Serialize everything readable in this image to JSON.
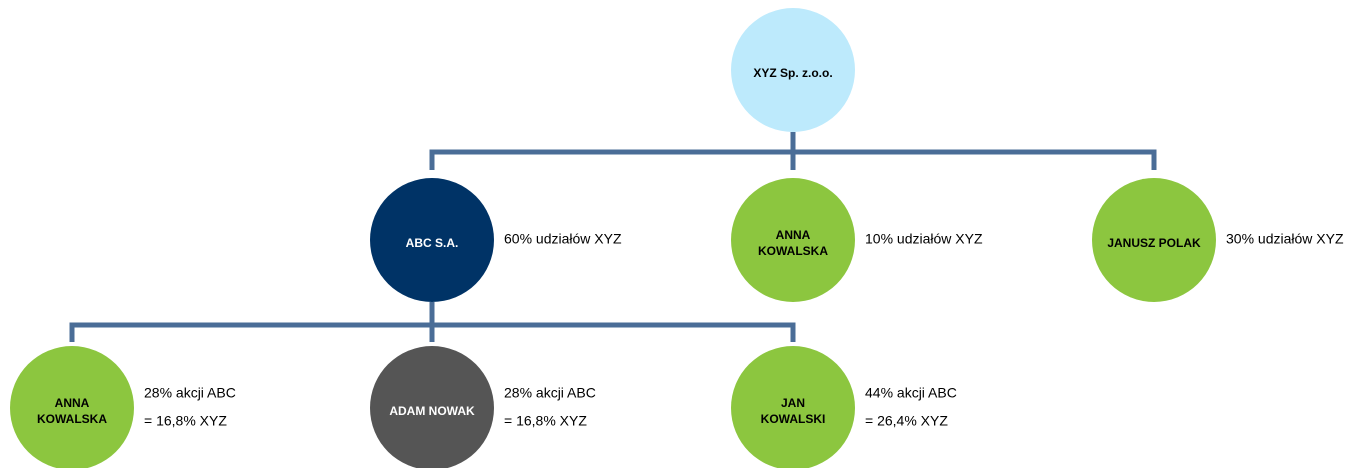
{
  "nodes": [
    {
      "label": [
        "XYZ Sp. z.o.o."
      ]
    },
    {
      "label": [
        "ABC S.A."
      ],
      "note": [
        "60% udziałów XYZ"
      ]
    },
    {
      "label": [
        "ANNA",
        "KOWALSKA"
      ],
      "note": [
        "10% udziałów XYZ"
      ]
    },
    {
      "label": [
        "JANUSZ POLAK"
      ],
      "note": [
        "30% udziałów XYZ"
      ]
    },
    {
      "label": [
        "ANNA",
        "KOWALSKA"
      ],
      "note": [
        "28% akcji ABC",
        "= 16,8% XYZ"
      ]
    },
    {
      "label": [
        "ADAM NOWAK"
      ],
      "note": [
        "28% akcji ABC",
        "= 16,8% XYZ"
      ]
    },
    {
      "label": [
        "JAN",
        "KOWALSKI"
      ],
      "note": [
        "44% akcji ABC",
        "= 26,4% XYZ"
      ]
    }
  ]
}
